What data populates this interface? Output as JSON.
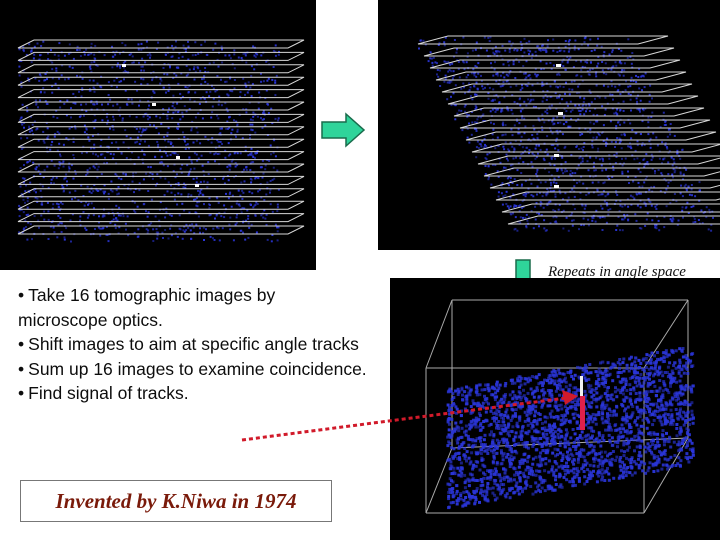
{
  "caption": "Repeats in angle space",
  "bullets": [
    "Take 16 tomographic images by microscope optics.",
    "Shift images to aim at  specific angle tracks",
    "Sum up 16 images to examine coincidence.",
    "Find  signal of tracks."
  ],
  "bullet_symbol": "•",
  "credit": "Invented by K.Niwa in 1974",
  "colors": {
    "background": "#ffffff",
    "panel": "#000000",
    "noise": "#2a35d8",
    "plane_lines": "#d8d8d8",
    "arrow_fill": "#2fd49a",
    "arrow_stroke": "#1a6b4c",
    "signal": "#e0204a",
    "dashed_arrow": "#d11a2a",
    "credit_text": "#7a1a0a"
  },
  "tomographic_images_count": 16
}
